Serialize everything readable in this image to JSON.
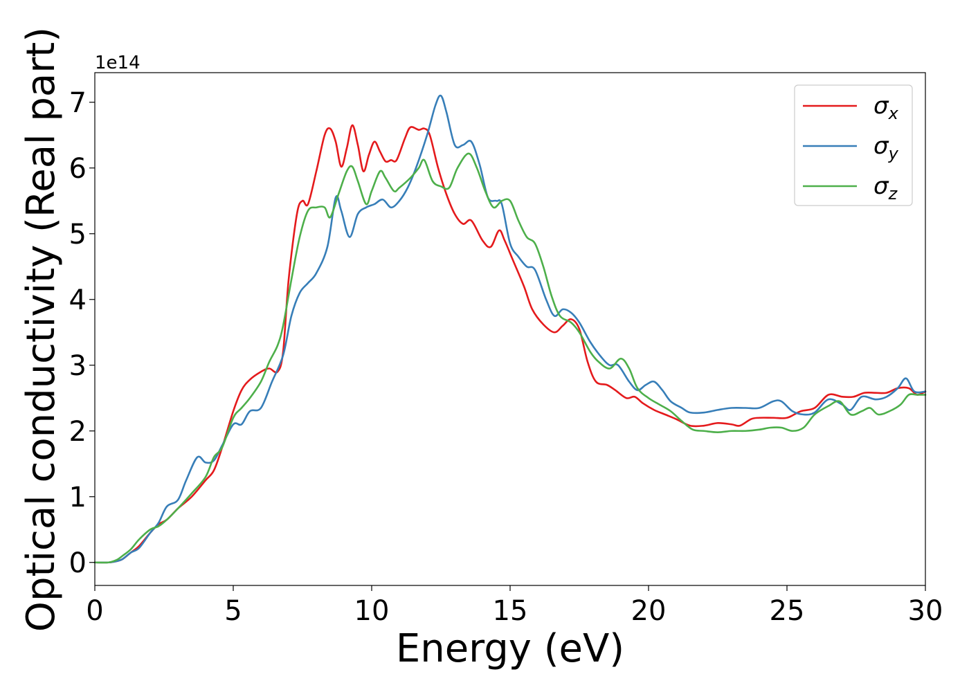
{
  "chart_data": {
    "type": "line",
    "xlabel": "Energy (eV)",
    "ylabel": "Optical conductivity (Real part)",
    "y_offset_label": "1e14",
    "xlim": [
      0,
      30
    ],
    "ylim": [
      -0.35,
      7.45
    ],
    "x_ticks": [
      0,
      5,
      10,
      15,
      20,
      25,
      30
    ],
    "y_ticks": [
      0,
      1,
      2,
      3,
      4,
      5,
      6,
      7
    ],
    "grid": false,
    "legend_position": "top-right",
    "series": [
      {
        "name": "σx",
        "symbol": "σ",
        "subscript": "x",
        "color": "#e41a1c",
        "points": [
          [
            0,
            0
          ],
          [
            0.5,
            0
          ],
          [
            0.8,
            0.02
          ],
          [
            1,
            0.05
          ],
          [
            1.3,
            0.15
          ],
          [
            1.6,
            0.25
          ],
          [
            2,
            0.45
          ],
          [
            2.3,
            0.58
          ],
          [
            2.6,
            0.65
          ],
          [
            3,
            0.82
          ],
          [
            3.5,
            1.0
          ],
          [
            4,
            1.25
          ],
          [
            4.3,
            1.4
          ],
          [
            4.6,
            1.75
          ],
          [
            5,
            2.3
          ],
          [
            5.3,
            2.62
          ],
          [
            5.6,
            2.78
          ],
          [
            6,
            2.9
          ],
          [
            6.3,
            2.95
          ],
          [
            6.6,
            2.9
          ],
          [
            6.8,
            3.2
          ],
          [
            7,
            4.3
          ],
          [
            7.3,
            5.3
          ],
          [
            7.5,
            5.5
          ],
          [
            7.7,
            5.45
          ],
          [
            8,
            5.95
          ],
          [
            8.3,
            6.5
          ],
          [
            8.5,
            6.6
          ],
          [
            8.7,
            6.4
          ],
          [
            8.9,
            6.02
          ],
          [
            9.1,
            6.3
          ],
          [
            9.3,
            6.65
          ],
          [
            9.5,
            6.35
          ],
          [
            9.7,
            5.95
          ],
          [
            9.9,
            6.2
          ],
          [
            10.1,
            6.4
          ],
          [
            10.3,
            6.25
          ],
          [
            10.5,
            6.1
          ],
          [
            10.7,
            6.12
          ],
          [
            10.9,
            6.12
          ],
          [
            11.2,
            6.45
          ],
          [
            11.4,
            6.62
          ],
          [
            11.7,
            6.58
          ],
          [
            11.9,
            6.6
          ],
          [
            12.1,
            6.5
          ],
          [
            12.4,
            6.0
          ],
          [
            12.7,
            5.6
          ],
          [
            13,
            5.3
          ],
          [
            13.3,
            5.15
          ],
          [
            13.6,
            5.2
          ],
          [
            14,
            4.9
          ],
          [
            14.3,
            4.8
          ],
          [
            14.6,
            5.05
          ],
          [
            14.8,
            4.9
          ],
          [
            15.1,
            4.6
          ],
          [
            15.5,
            4.2
          ],
          [
            15.8,
            3.85
          ],
          [
            16.2,
            3.62
          ],
          [
            16.6,
            3.5
          ],
          [
            16.9,
            3.6
          ],
          [
            17.2,
            3.7
          ],
          [
            17.5,
            3.55
          ],
          [
            17.8,
            3.05
          ],
          [
            18.1,
            2.75
          ],
          [
            18.5,
            2.7
          ],
          [
            18.8,
            2.62
          ],
          [
            19.2,
            2.5
          ],
          [
            19.5,
            2.52
          ],
          [
            19.8,
            2.42
          ],
          [
            20.2,
            2.32
          ],
          [
            20.6,
            2.25
          ],
          [
            21,
            2.18
          ],
          [
            21.5,
            2.08
          ],
          [
            22,
            2.08
          ],
          [
            22.5,
            2.12
          ],
          [
            23,
            2.1
          ],
          [
            23.3,
            2.08
          ],
          [
            23.7,
            2.18
          ],
          [
            24,
            2.2
          ],
          [
            24.5,
            2.2
          ],
          [
            25,
            2.2
          ],
          [
            25.5,
            2.3
          ],
          [
            26,
            2.35
          ],
          [
            26.5,
            2.55
          ],
          [
            27,
            2.52
          ],
          [
            27.4,
            2.52
          ],
          [
            27.8,
            2.58
          ],
          [
            28.2,
            2.58
          ],
          [
            28.6,
            2.58
          ],
          [
            29,
            2.65
          ],
          [
            29.4,
            2.65
          ],
          [
            29.7,
            2.55
          ],
          [
            30,
            2.6
          ]
        ]
      },
      {
        "name": "σy",
        "symbol": "σ",
        "subscript": "y",
        "color": "#377eb8",
        "points": [
          [
            0,
            0
          ],
          [
            0.5,
            0
          ],
          [
            0.8,
            0.02
          ],
          [
            1,
            0.05
          ],
          [
            1.3,
            0.15
          ],
          [
            1.6,
            0.22
          ],
          [
            2,
            0.45
          ],
          [
            2.3,
            0.6
          ],
          [
            2.6,
            0.85
          ],
          [
            3,
            0.95
          ],
          [
            3.3,
            1.25
          ],
          [
            3.7,
            1.6
          ],
          [
            4,
            1.52
          ],
          [
            4.3,
            1.55
          ],
          [
            4.6,
            1.78
          ],
          [
            5,
            2.1
          ],
          [
            5.3,
            2.1
          ],
          [
            5.6,
            2.3
          ],
          [
            6,
            2.35
          ],
          [
            6.4,
            2.75
          ],
          [
            6.8,
            3.15
          ],
          [
            7.1,
            3.75
          ],
          [
            7.4,
            4.1
          ],
          [
            7.7,
            4.25
          ],
          [
            8,
            4.4
          ],
          [
            8.4,
            4.8
          ],
          [
            8.7,
            5.55
          ],
          [
            8.9,
            5.35
          ],
          [
            9.2,
            4.95
          ],
          [
            9.5,
            5.3
          ],
          [
            9.8,
            5.4
          ],
          [
            10.1,
            5.45
          ],
          [
            10.4,
            5.52
          ],
          [
            10.7,
            5.4
          ],
          [
            11,
            5.5
          ],
          [
            11.3,
            5.7
          ],
          [
            11.6,
            6.0
          ],
          [
            12,
            6.5
          ],
          [
            12.3,
            6.95
          ],
          [
            12.5,
            7.1
          ],
          [
            12.7,
            6.85
          ],
          [
            13,
            6.35
          ],
          [
            13.3,
            6.35
          ],
          [
            13.6,
            6.4
          ],
          [
            13.9,
            6.05
          ],
          [
            14.2,
            5.55
          ],
          [
            14.5,
            5.5
          ],
          [
            14.7,
            5.45
          ],
          [
            15,
            4.85
          ],
          [
            15.3,
            4.65
          ],
          [
            15.6,
            4.5
          ],
          [
            15.9,
            4.45
          ],
          [
            16.3,
            4.0
          ],
          [
            16.6,
            3.75
          ],
          [
            16.9,
            3.85
          ],
          [
            17.2,
            3.8
          ],
          [
            17.5,
            3.65
          ],
          [
            17.9,
            3.35
          ],
          [
            18.3,
            3.12
          ],
          [
            18.6,
            3.0
          ],
          [
            18.9,
            3.0
          ],
          [
            19.3,
            2.75
          ],
          [
            19.6,
            2.62
          ],
          [
            19.9,
            2.7
          ],
          [
            20.2,
            2.75
          ],
          [
            20.5,
            2.62
          ],
          [
            20.8,
            2.45
          ],
          [
            21.2,
            2.35
          ],
          [
            21.5,
            2.28
          ],
          [
            22,
            2.28
          ],
          [
            22.5,
            2.32
          ],
          [
            23,
            2.35
          ],
          [
            23.5,
            2.35
          ],
          [
            24,
            2.35
          ],
          [
            24.5,
            2.45
          ],
          [
            24.8,
            2.45
          ],
          [
            25.2,
            2.3
          ],
          [
            25.6,
            2.25
          ],
          [
            26,
            2.28
          ],
          [
            26.5,
            2.48
          ],
          [
            27,
            2.4
          ],
          [
            27.3,
            2.32
          ],
          [
            27.7,
            2.52
          ],
          [
            28.2,
            2.48
          ],
          [
            28.6,
            2.52
          ],
          [
            29,
            2.65
          ],
          [
            29.3,
            2.8
          ],
          [
            29.6,
            2.6
          ],
          [
            30,
            2.6
          ]
        ]
      },
      {
        "name": "σz",
        "symbol": "σ",
        "subscript": "z",
        "color": "#4daf4a",
        "points": [
          [
            0,
            0
          ],
          [
            0.5,
            0
          ],
          [
            0.8,
            0.04
          ],
          [
            1,
            0.1
          ],
          [
            1.3,
            0.2
          ],
          [
            1.6,
            0.35
          ],
          [
            2,
            0.5
          ],
          [
            2.3,
            0.55
          ],
          [
            2.6,
            0.65
          ],
          [
            3,
            0.82
          ],
          [
            3.5,
            1.05
          ],
          [
            4,
            1.3
          ],
          [
            4.3,
            1.6
          ],
          [
            4.6,
            1.75
          ],
          [
            5,
            2.2
          ],
          [
            5.3,
            2.35
          ],
          [
            5.6,
            2.5
          ],
          [
            6,
            2.75
          ],
          [
            6.3,
            3.05
          ],
          [
            6.6,
            3.3
          ],
          [
            6.8,
            3.6
          ],
          [
            7.1,
            4.3
          ],
          [
            7.4,
            4.95
          ],
          [
            7.7,
            5.35
          ],
          [
            8,
            5.4
          ],
          [
            8.3,
            5.4
          ],
          [
            8.5,
            5.25
          ],
          [
            8.8,
            5.6
          ],
          [
            9.1,
            5.95
          ],
          [
            9.3,
            6.02
          ],
          [
            9.5,
            5.8
          ],
          [
            9.8,
            5.45
          ],
          [
            10,
            5.65
          ],
          [
            10.3,
            5.95
          ],
          [
            10.5,
            5.85
          ],
          [
            10.8,
            5.65
          ],
          [
            11,
            5.7
          ],
          [
            11.4,
            5.85
          ],
          [
            11.7,
            6.0
          ],
          [
            11.9,
            6.12
          ],
          [
            12.2,
            5.8
          ],
          [
            12.5,
            5.72
          ],
          [
            12.8,
            5.7
          ],
          [
            13.1,
            6.0
          ],
          [
            13.5,
            6.22
          ],
          [
            13.8,
            6.0
          ],
          [
            14.1,
            5.65
          ],
          [
            14.4,
            5.4
          ],
          [
            14.7,
            5.5
          ],
          [
            15.0,
            5.5
          ],
          [
            15.3,
            5.2
          ],
          [
            15.6,
            4.95
          ],
          [
            15.9,
            4.85
          ],
          [
            16.2,
            4.5
          ],
          [
            16.5,
            4.05
          ],
          [
            16.8,
            3.75
          ],
          [
            17.2,
            3.65
          ],
          [
            17.5,
            3.5
          ],
          [
            17.9,
            3.2
          ],
          [
            18.2,
            3.05
          ],
          [
            18.6,
            2.95
          ],
          [
            19,
            3.1
          ],
          [
            19.3,
            2.95
          ],
          [
            19.6,
            2.65
          ],
          [
            20,
            2.5
          ],
          [
            20.4,
            2.4
          ],
          [
            20.8,
            2.3
          ],
          [
            21.2,
            2.15
          ],
          [
            21.6,
            2.02
          ],
          [
            22,
            2.0
          ],
          [
            22.5,
            1.98
          ],
          [
            23,
            2.0
          ],
          [
            23.5,
            2.0
          ],
          [
            24,
            2.02
          ],
          [
            24.4,
            2.05
          ],
          [
            24.8,
            2.05
          ],
          [
            25.2,
            2.0
          ],
          [
            25.6,
            2.05
          ],
          [
            26,
            2.25
          ],
          [
            26.5,
            2.38
          ],
          [
            26.9,
            2.45
          ],
          [
            27.3,
            2.25
          ],
          [
            27.7,
            2.3
          ],
          [
            28,
            2.35
          ],
          [
            28.3,
            2.25
          ],
          [
            28.7,
            2.3
          ],
          [
            29.1,
            2.4
          ],
          [
            29.4,
            2.55
          ],
          [
            29.7,
            2.55
          ],
          [
            30,
            2.55
          ]
        ]
      }
    ]
  }
}
